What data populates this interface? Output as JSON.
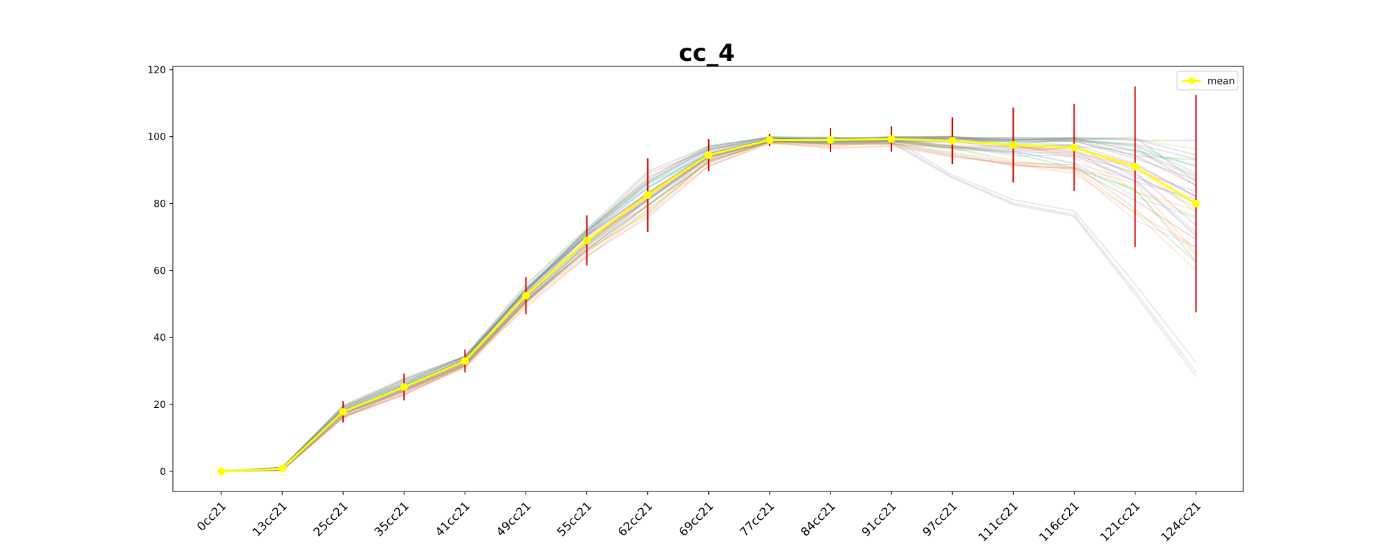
{
  "chart_data": {
    "type": "line",
    "title": "cc_4",
    "xlabel": "",
    "ylabel": "",
    "categories": [
      "0cc21",
      "13cc21",
      "25cc21",
      "35cc21",
      "41cc21",
      "49cc21",
      "55cc21",
      "62cc21",
      "69cc21",
      "77cc21",
      "84cc21",
      "91cc21",
      "97cc21",
      "111cc21",
      "116cc21",
      "121cc21",
      "124cc21"
    ],
    "ylim": [
      -6,
      121
    ],
    "yticks": [
      0,
      20,
      40,
      60,
      80,
      100,
      120
    ],
    "grid": false,
    "legend_position": "top-right",
    "series": [
      {
        "name": "mean",
        "color": "#ffff00",
        "values": [
          0,
          0.8,
          17.8,
          25.2,
          33.0,
          52.5,
          69.0,
          82.5,
          94.5,
          99.0,
          99.0,
          99.3,
          98.8,
          97.5,
          96.8,
          91.0,
          80.0
        ],
        "error": [
          0.2,
          0.8,
          3.2,
          4.0,
          3.4,
          5.5,
          7.5,
          11.0,
          4.8,
          1.8,
          3.6,
          3.8,
          7.0,
          11.2,
          13.0,
          24.0,
          32.5
        ]
      }
    ],
    "error_color": "#d40000",
    "background_lines": {
      "count": 40,
      "opacity": 0.18,
      "description_visible": false
    }
  }
}
